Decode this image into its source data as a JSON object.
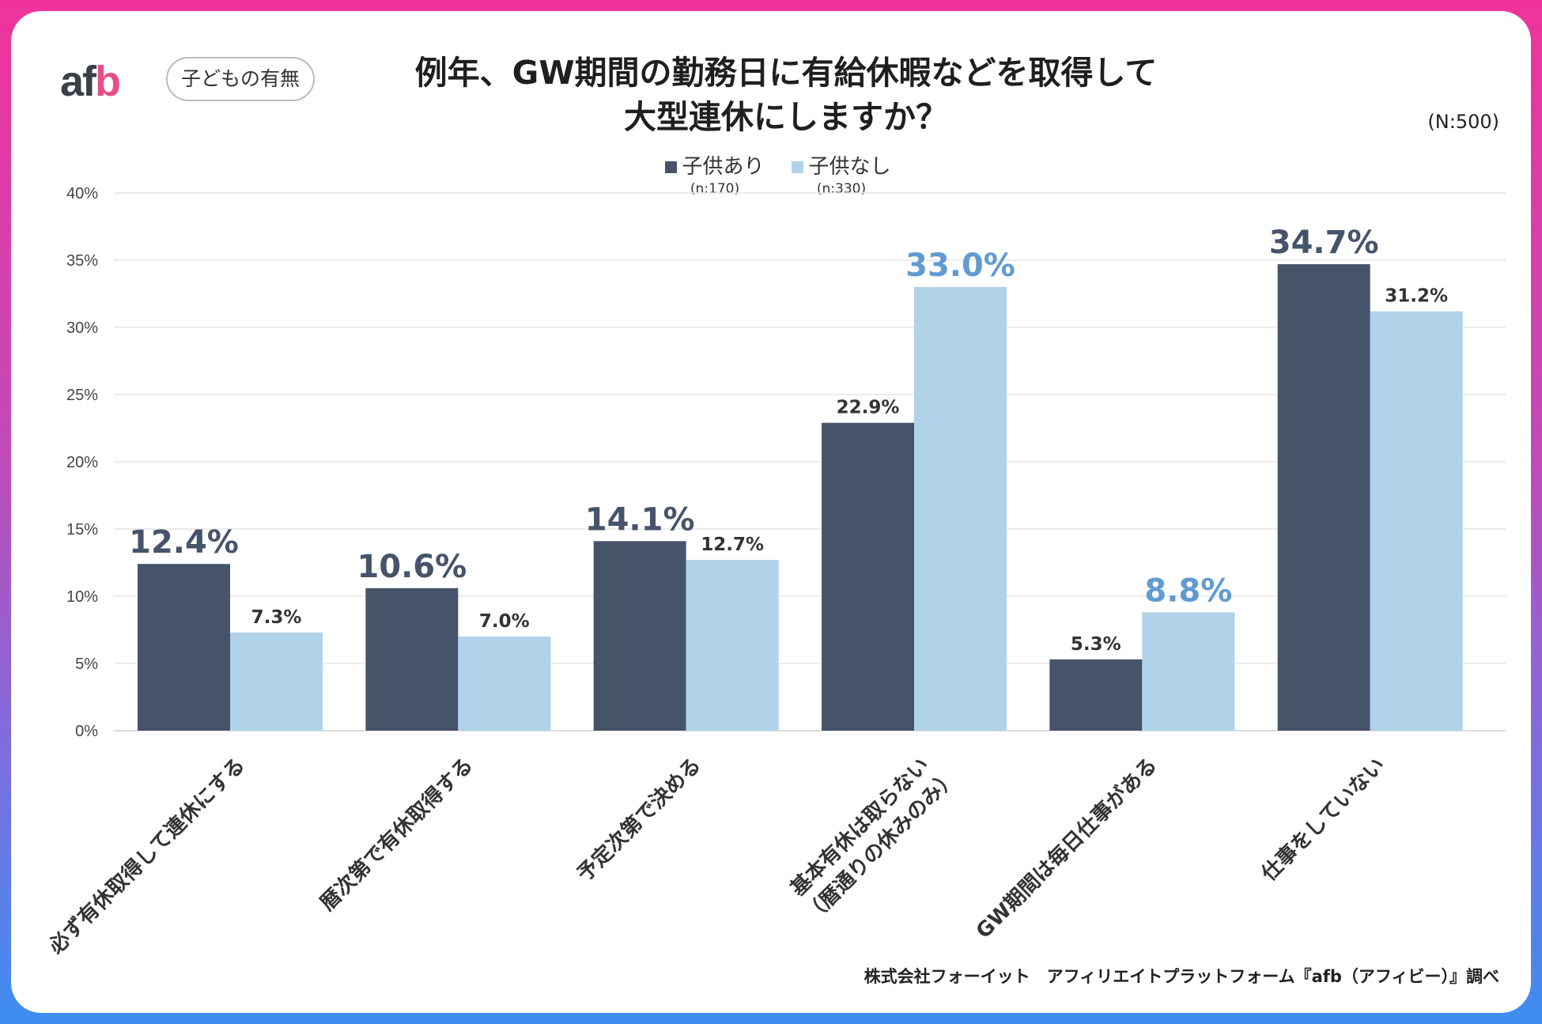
{
  "brand": {
    "logo_text_main": "af",
    "logo_text_accent": "b"
  },
  "tag": "子どもの有無",
  "title_line1": "例年、GW期間の勤務日に有給休暇などを取得して",
  "title_line2": "大型連休にしますか？",
  "n_total": "(N:500)",
  "legend": [
    {
      "label": "子供あり",
      "n": "(n:170)",
      "color": "#46546b"
    },
    {
      "label": "子供なし",
      "n": "(n:330)",
      "color": "#b0d3ea"
    }
  ],
  "footer": "株式会社フォーイット　アフィリエイトプラットフォーム『afb（アフィビー）』調べ",
  "chart_data": {
    "type": "bar",
    "ylim": [
      0,
      40
    ],
    "yticks": [
      "0%",
      "5%",
      "10%",
      "15%",
      "20%",
      "25%",
      "30%",
      "35%",
      "40%"
    ],
    "categories": [
      "必ず有休取得して連休にする",
      "暦次第で有休取得する",
      "予定次第で決める",
      "基本有休は取らない（暦通りの休みのみ）",
      "GW期間は毎日仕事がある",
      "仕事をしていない"
    ],
    "series": [
      {
        "name": "子供あり",
        "values": [
          12.4,
          10.6,
          14.1,
          22.9,
          5.3,
          34.7
        ],
        "labels": [
          "12.4%",
          "10.6%",
          "14.1%",
          "22.9%",
          "5.3%",
          "34.7%"
        ],
        "emphasis": [
          true,
          true,
          true,
          false,
          false,
          true
        ]
      },
      {
        "name": "子供なし",
        "values": [
          7.3,
          7.0,
          12.7,
          33.0,
          8.8,
          31.2
        ],
        "labels": [
          "7.3%",
          "7.0%",
          "12.7%",
          "33.0%",
          "8.8%",
          "31.2%"
        ],
        "emphasis": [
          false,
          false,
          false,
          true,
          true,
          false
        ]
      }
    ],
    "colors": {
      "series1": "#46546b",
      "series2": "#b0d3ea",
      "emph1": "#46546b",
      "emph2": "#5f9bd0",
      "normal_label": "#333333"
    }
  }
}
